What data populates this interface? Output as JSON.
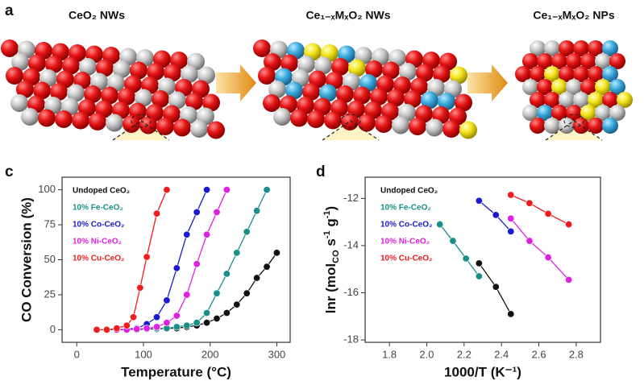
{
  "panel_a": {
    "label": "a",
    "titles": [
      "CeO₂ NWs",
      "Ce₁₋ₓMₓO₂ NWs",
      "Ce₁₋ₓMₓO₂ NPs"
    ]
  },
  "chart_data": [
    {
      "type": "line",
      "panel": "c",
      "xlabel": "Temperature (°C)",
      "ylabel": "CO Conversion (%)",
      "xlim": [
        -22,
        320
      ],
      "ylim": [
        -9,
        109
      ],
      "xticks": [
        0,
        100,
        200,
        300
      ],
      "yticks": [
        0,
        25,
        50,
        75,
        100
      ],
      "series": [
        {
          "name": "Undoped CeO₂",
          "color": "#111111",
          "x": [
            90,
            105,
            120,
            135,
            150,
            165,
            180,
            195,
            210,
            225,
            240,
            255,
            270,
            285,
            300
          ],
          "values": [
            0,
            0.5,
            0.5,
            1,
            1,
            2,
            3,
            5,
            8,
            12,
            18,
            26,
            37,
            45,
            55
          ]
        },
        {
          "name": "10% Fe-CeO₂",
          "color": "#1a8f8a",
          "x": [
            45,
            60,
            75,
            90,
            105,
            120,
            135,
            150,
            165,
            180,
            195,
            210,
            225,
            240,
            255,
            270,
            285
          ],
          "values": [
            0,
            0,
            0,
            0.5,
            0.5,
            1,
            1,
            2,
            3,
            5,
            12,
            26,
            40,
            55,
            70,
            85,
            100
          ]
        },
        {
          "name": "10% Co-CeO₂",
          "color": "#1a1ad0",
          "x": [
            60,
            75,
            90,
            105,
            120,
            135,
            150,
            165,
            180,
            195
          ],
          "values": [
            0,
            0.5,
            1,
            4,
            9,
            21,
            44,
            68,
            84,
            100
          ]
        },
        {
          "name": "10% Ni-CeO₂",
          "color": "#e020e0",
          "x": [
            60,
            75,
            90,
            105,
            120,
            135,
            150,
            165,
            180,
            195,
            210,
            225
          ],
          "values": [
            0,
            0,
            0.5,
            1,
            2,
            5,
            10,
            25,
            47,
            68,
            84,
            100
          ]
        },
        {
          "name": "10% Cu-CeO₂",
          "color": "#ee1c1c",
          "x": [
            30,
            45,
            60,
            75,
            85,
            95,
            105,
            120,
            135
          ],
          "values": [
            0,
            0,
            1,
            3,
            9,
            30,
            52,
            83,
            100
          ]
        }
      ]
    },
    {
      "type": "line",
      "panel": "d",
      "xlabel": "1000/T (K⁻¹)",
      "ylabel_parts": [
        "lnr (mol",
        "CO",
        " s",
        "-1",
        " g",
        "-1",
        ")"
      ],
      "xlim": [
        1.67,
        2.93
      ],
      "ylim": [
        -18.1,
        -11.1
      ],
      "xticks": [
        1.8,
        {
          "value": 2,
          "label": "2.0"
        },
        2.2,
        2.4,
        2.6,
        2.8
      ],
      "yticks": [
        -12,
        -14,
        -16,
        -18
      ],
      "series": [
        {
          "name": "Undoped CeO₂",
          "color": "#111111",
          "x": [
            2.28,
            2.37,
            2.45
          ],
          "values": [
            -14.75,
            -15.75,
            -16.9
          ]
        },
        {
          "name": "10% Fe-CeO₂",
          "color": "#1a8f8a",
          "x": [
            2.07,
            2.14,
            2.21,
            2.28
          ],
          "values": [
            -13.1,
            -13.8,
            -14.55,
            -15.3
          ]
        },
        {
          "name": "10% Co-CeO₂",
          "color": "#1a1ad0",
          "x": [
            2.28,
            2.37,
            2.45
          ],
          "values": [
            -12.1,
            -12.7,
            -13.4
          ]
        },
        {
          "name": "10% Ni-CeO₂",
          "color": "#e020e0",
          "x": [
            2.45,
            2.55,
            2.65,
            2.76
          ],
          "values": [
            -12.85,
            -13.8,
            -14.5,
            -15.45
          ]
        },
        {
          "name": "10% Cu-CeO₂",
          "color": "#ee1c1c",
          "x": [
            2.45,
            2.55,
            2.65,
            2.76
          ],
          "values": [
            -11.85,
            -12.2,
            -12.65,
            -13.1
          ]
        }
      ]
    }
  ]
}
